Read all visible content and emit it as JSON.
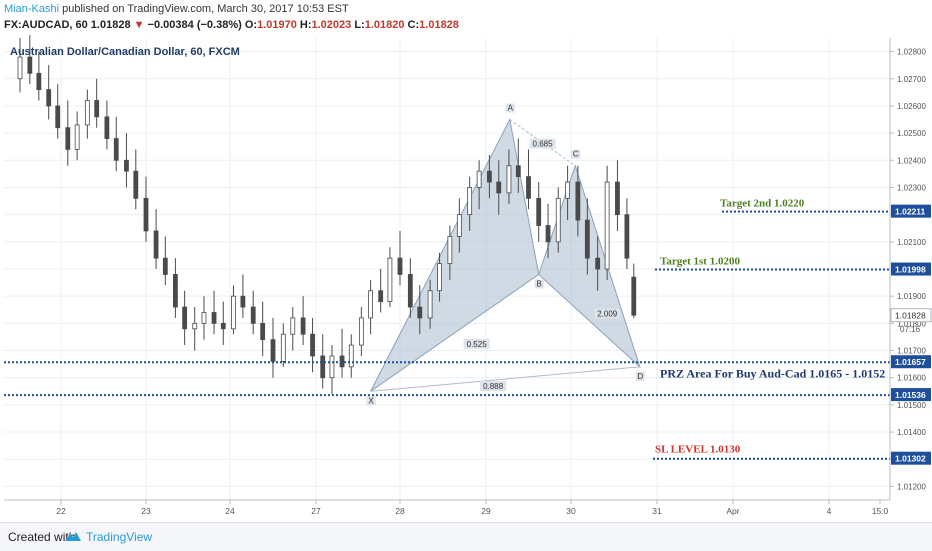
{
  "header": {
    "author": "Mian-Kashi",
    "published": "published on TradingView.com, March 30, 2017 10:53 EST",
    "symbol": "FX:AUDCAD, 60",
    "last": "1.01828",
    "change": "−0.00384 (−0.38%)",
    "o_label": "O:",
    "o": "1.01970",
    "h_label": "H:",
    "h": "1.02023",
    "l_label": "L:",
    "l": "1.01820",
    "c_label": "C:",
    "c": "1.01828"
  },
  "footer": {
    "created": "Created with",
    "brand": "TradingView"
  },
  "chart_data": {
    "type": "candlestick",
    "title": "Australian Dollar/Canadian Dollar, 60, FXCM",
    "xlabel": "",
    "ylabel": "",
    "ylim": [
      1.0115,
      1.0285
    ],
    "y_ticks": [
      "1.02800",
      "1.02700",
      "1.02600",
      "1.02500",
      "1.02400",
      "1.02300",
      "1.02200",
      "1.02100",
      "1.02000",
      "1.01900",
      "1.01800",
      "1.01700",
      "1.01600",
      "1.01500",
      "1.01400",
      "1.01300",
      "1.01200"
    ],
    "x_ticks": [
      "22",
      "23",
      "24",
      "27",
      "28",
      "29",
      "30",
      "31",
      "Apr",
      "4",
      "15:0"
    ],
    "price_tags": [
      {
        "value": 1.02211,
        "label": "1.02211",
        "style": "boxed"
      },
      {
        "value": 1.01998,
        "label": "1.01998",
        "style": "boxed"
      },
      {
        "value": 1.01828,
        "label": "1.01828",
        "style": "current"
      },
      {
        "value": 1.0178,
        "label": "07:16",
        "style": "time"
      },
      {
        "value": 1.01657,
        "label": "1.01657",
        "style": "boxed"
      },
      {
        "value": 1.01536,
        "label": "1.01536",
        "style": "boxed"
      },
      {
        "value": 1.01302,
        "label": "1.01302",
        "style": "boxed"
      }
    ],
    "horizontal_lines": [
      1.02211,
      1.01998,
      1.01657,
      1.01536,
      1.01302
    ],
    "annotations": [
      {
        "text": "Target 2nd 1.0220",
        "color": "#4d7d21"
      },
      {
        "text": "Target 1st 1.0200",
        "color": "#4d7d21"
      },
      {
        "text": "PRZ Area For Buy Aud-Cad 1.0165 - 1.0152",
        "color": "#1e3a6e"
      },
      {
        "text": "SL LEVEL 1.0130",
        "color": "#d32f2f"
      }
    ],
    "pattern_points": [
      {
        "label": "X",
        "day": 27.65,
        "price": 1.0155
      },
      {
        "label": "A",
        "day": 29.28,
        "price": 1.0255
      },
      {
        "label": "B",
        "day": 29.62,
        "price": 1.0198
      },
      {
        "label": "C",
        "day": 30.05,
        "price": 1.0238
      },
      {
        "label": "D",
        "day": 30.8,
        "price": 1.0164
      }
    ],
    "ratios": [
      "0.525",
      "0.685",
      "2.009",
      "0.888"
    ],
    "candles": [
      [
        21.5,
        1.027,
        1.0285,
        1.0265,
        1.0278
      ],
      [
        21.62,
        1.0278,
        1.0286,
        1.0268,
        1.0272
      ],
      [
        21.73,
        1.0272,
        1.028,
        1.0262,
        1.0266
      ],
      [
        21.85,
        1.0266,
        1.0275,
        1.0255,
        1.026
      ],
      [
        21.96,
        1.026,
        1.0268,
        1.0248,
        1.0252
      ],
      [
        22.08,
        1.0252,
        1.0262,
        1.0238,
        1.0244
      ],
      [
        22.19,
        1.0244,
        1.0258,
        1.024,
        1.0253
      ],
      [
        22.31,
        1.0253,
        1.0266,
        1.0248,
        1.0262
      ],
      [
        22.42,
        1.0262,
        1.027,
        1.0252,
        1.0256
      ],
      [
        22.54,
        1.0256,
        1.0262,
        1.0244,
        1.0248
      ],
      [
        22.65,
        1.0248,
        1.0256,
        1.0236,
        1.024
      ],
      [
        22.77,
        1.024,
        1.025,
        1.023,
        1.0236
      ],
      [
        22.88,
        1.0236,
        1.0244,
        1.0222,
        1.0226
      ],
      [
        23.0,
        1.0226,
        1.0234,
        1.021,
        1.0214
      ],
      [
        23.12,
        1.0214,
        1.0222,
        1.02,
        1.0204
      ],
      [
        23.23,
        1.0204,
        1.0212,
        1.0194,
        1.0198
      ],
      [
        23.35,
        1.0198,
        1.0204,
        1.0182,
        1.0186
      ],
      [
        23.46,
        1.0186,
        1.0192,
        1.0172,
        1.0178
      ],
      [
        23.58,
        1.0178,
        1.0186,
        1.017,
        1.018
      ],
      [
        23.69,
        1.018,
        1.019,
        1.0174,
        1.0184
      ],
      [
        23.81,
        1.0184,
        1.0192,
        1.0176,
        1.018
      ],
      [
        23.92,
        1.018,
        1.0188,
        1.0172,
        1.0178
      ],
      [
        24.04,
        1.0178,
        1.0194,
        1.0176,
        1.019
      ],
      [
        24.15,
        1.019,
        1.0198,
        1.0182,
        1.0186
      ],
      [
        24.27,
        1.0186,
        1.0192,
        1.0176,
        1.018
      ],
      [
        24.38,
        1.018,
        1.0188,
        1.0168,
        1.0174
      ],
      [
        24.5,
        1.0174,
        1.0182,
        1.016,
        1.0166
      ],
      [
        24.62,
        1.0166,
        1.018,
        1.0164,
        1.0176
      ],
      [
        24.73,
        1.0176,
        1.0186,
        1.017,
        1.0182
      ],
      [
        24.85,
        1.0182,
        1.019,
        1.0172,
        1.0176
      ],
      [
        24.96,
        1.0176,
        1.0182,
        1.0162,
        1.0168
      ],
      [
        27.08,
        1.0168,
        1.0176,
        1.0156,
        1.016
      ],
      [
        27.19,
        1.016,
        1.0172,
        1.0154,
        1.0168
      ],
      [
        27.31,
        1.0168,
        1.0178,
        1.016,
        1.0164
      ],
      [
        27.42,
        1.0164,
        1.0176,
        1.016,
        1.0172
      ],
      [
        27.54,
        1.0172,
        1.0186,
        1.0168,
        1.0182
      ],
      [
        27.65,
        1.0182,
        1.0196,
        1.0176,
        1.0192
      ],
      [
        27.77,
        1.0192,
        1.02,
        1.0184,
        1.0188
      ],
      [
        27.88,
        1.0188,
        1.0208,
        1.0186,
        1.0204
      ],
      [
        28.0,
        1.0204,
        1.0214,
        1.0194,
        1.0198
      ],
      [
        28.12,
        1.0198,
        1.0204,
        1.0182,
        1.0186
      ],
      [
        28.23,
        1.0186,
        1.0194,
        1.0176,
        1.0182
      ],
      [
        28.35,
        1.0182,
        1.0196,
        1.0178,
        1.0192
      ],
      [
        28.46,
        1.0192,
        1.0206,
        1.0188,
        1.0202
      ],
      [
        28.58,
        1.0202,
        1.0216,
        1.0196,
        1.0212
      ],
      [
        28.69,
        1.0212,
        1.0226,
        1.0206,
        1.022
      ],
      [
        28.81,
        1.022,
        1.0234,
        1.0214,
        1.023
      ],
      [
        28.92,
        1.023,
        1.024,
        1.0222,
        1.0236
      ],
      [
        29.04,
        1.0236,
        1.0242,
        1.0226,
        1.0232
      ],
      [
        29.15,
        1.0232,
        1.024,
        1.022,
        1.0228
      ],
      [
        29.27,
        1.0228,
        1.0244,
        1.0224,
        1.0238
      ],
      [
        29.38,
        1.0238,
        1.0248,
        1.0228,
        1.0234
      ],
      [
        29.5,
        1.0234,
        1.0244,
        1.0222,
        1.0226
      ],
      [
        29.62,
        1.0226,
        1.0232,
        1.021,
        1.0216
      ],
      [
        29.73,
        1.0216,
        1.0224,
        1.0204,
        1.021
      ],
      [
        29.85,
        1.021,
        1.023,
        1.0206,
        1.0226
      ],
      [
        29.96,
        1.0226,
        1.0238,
        1.0218,
        1.0232
      ],
      [
        30.08,
        1.0232,
        1.0238,
        1.0212,
        1.0218
      ],
      [
        30.19,
        1.0218,
        1.0226,
        1.0198,
        1.0204
      ],
      [
        30.31,
        1.0204,
        1.0212,
        1.0192,
        1.02
      ],
      [
        30.42,
        1.02,
        1.0238,
        1.0196,
        1.0232
      ],
      [
        30.54,
        1.0232,
        1.024,
        1.0214,
        1.022
      ],
      [
        30.65,
        1.022,
        1.0226,
        1.02,
        1.0204
      ],
      [
        30.73,
        1.0197,
        1.0202,
        1.0182,
        1.0183
      ]
    ]
  }
}
